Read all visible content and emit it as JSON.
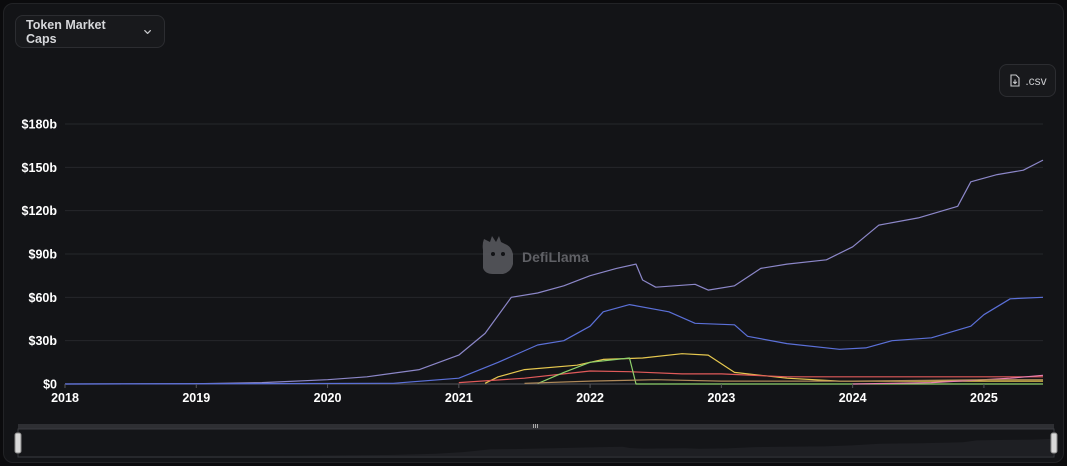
{
  "header": {
    "dropdown_label": "Token Market Caps",
    "dropdown_icon": "chevron-down-icon"
  },
  "toolbar": {
    "csv_label": ".csv",
    "csv_icon": "file-download-icon"
  },
  "watermark": {
    "text": "DefiLlama",
    "icon": "llama-logo-icon"
  },
  "colors": {
    "series_1": "#8c87c9",
    "series_2": "#5b70d8",
    "series_3": "#e6c84f",
    "series_4": "#e05a5a",
    "series_5": "#8fd16b",
    "series_6": "#e87fb0",
    "series_7": "#b08a5a"
  },
  "chart_data": {
    "type": "line",
    "title": "",
    "xlabel": "",
    "ylabel": "",
    "xlim": [
      2018.0,
      2025.45
    ],
    "ylim": [
      0,
      180
    ],
    "y_ticks": [
      0,
      30,
      60,
      90,
      120,
      150,
      180
    ],
    "y_tick_labels": [
      "$0",
      "$30b",
      "$60b",
      "$90b",
      "$120b",
      "$150b",
      "$180b"
    ],
    "x_ticks": [
      2018,
      2019,
      2020,
      2021,
      2022,
      2023,
      2024,
      2025
    ],
    "x_tick_labels": [
      "2018",
      "2019",
      "2020",
      "2021",
      "2022",
      "2023",
      "2024",
      "2025"
    ],
    "grid": "horizontal",
    "legend": "none",
    "series": [
      {
        "values": [
          [
            2018.0,
            0
          ],
          [
            2019.0,
            0.2
          ],
          [
            2019.5,
            1
          ],
          [
            2020.0,
            3
          ],
          [
            2020.3,
            5
          ],
          [
            2020.7,
            10
          ],
          [
            2021.0,
            20
          ],
          [
            2021.2,
            35
          ],
          [
            2021.4,
            60
          ],
          [
            2021.6,
            63
          ],
          [
            2021.8,
            68
          ],
          [
            2022.0,
            75
          ],
          [
            2022.2,
            80
          ],
          [
            2022.35,
            83
          ],
          [
            2022.4,
            72
          ],
          [
            2022.5,
            67
          ],
          [
            2022.8,
            69
          ],
          [
            2022.9,
            65
          ],
          [
            2023.1,
            68
          ],
          [
            2023.3,
            80
          ],
          [
            2023.5,
            83
          ],
          [
            2023.8,
            86
          ],
          [
            2024.0,
            95
          ],
          [
            2024.2,
            110
          ],
          [
            2024.5,
            115
          ],
          [
            2024.8,
            123
          ],
          [
            2024.9,
            140
          ],
          [
            2025.1,
            145
          ],
          [
            2025.3,
            148
          ],
          [
            2025.45,
            155
          ]
        ]
      },
      {
        "values": [
          [
            2018.0,
            0
          ],
          [
            2020.5,
            0.5
          ],
          [
            2021.0,
            4
          ],
          [
            2021.3,
            15
          ],
          [
            2021.6,
            27
          ],
          [
            2021.8,
            30
          ],
          [
            2022.0,
            40
          ],
          [
            2022.1,
            50
          ],
          [
            2022.3,
            55
          ],
          [
            2022.6,
            50
          ],
          [
            2022.8,
            42
          ],
          [
            2023.1,
            41
          ],
          [
            2023.2,
            33
          ],
          [
            2023.5,
            28
          ],
          [
            2023.9,
            24
          ],
          [
            2024.1,
            25
          ],
          [
            2024.3,
            30
          ],
          [
            2024.6,
            32
          ],
          [
            2024.9,
            40
          ],
          [
            2025.0,
            48
          ],
          [
            2025.2,
            59
          ],
          [
            2025.45,
            60
          ]
        ]
      },
      {
        "values": [
          [
            2021.2,
            0.5
          ],
          [
            2021.3,
            5
          ],
          [
            2021.5,
            10
          ],
          [
            2021.9,
            13
          ],
          [
            2022.1,
            17
          ],
          [
            2022.4,
            18
          ],
          [
            2022.7,
            21
          ],
          [
            2022.9,
            20
          ],
          [
            2023.1,
            8
          ],
          [
            2023.5,
            4
          ],
          [
            2023.9,
            2
          ],
          [
            2024.5,
            2
          ],
          [
            2025.45,
            2
          ]
        ]
      },
      {
        "values": [
          [
            2021.0,
            1
          ],
          [
            2021.5,
            4
          ],
          [
            2021.8,
            7
          ],
          [
            2022.0,
            9
          ],
          [
            2022.3,
            8.5
          ],
          [
            2022.7,
            7
          ],
          [
            2023.0,
            7
          ],
          [
            2023.5,
            5
          ],
          [
            2024.0,
            5
          ],
          [
            2024.5,
            5
          ],
          [
            2025.45,
            5
          ]
        ]
      },
      {
        "values": [
          [
            2021.6,
            0.3
          ],
          [
            2021.8,
            8
          ],
          [
            2022.0,
            15
          ],
          [
            2022.3,
            18
          ],
          [
            2022.35,
            0
          ],
          [
            2022.6,
            0
          ],
          [
            2025.45,
            0
          ]
        ]
      },
      {
        "values": [
          [
            2024.0,
            0
          ],
          [
            2024.6,
            1
          ],
          [
            2025.0,
            3
          ],
          [
            2025.2,
            4
          ],
          [
            2025.45,
            6
          ]
        ]
      },
      {
        "values": [
          [
            2021.5,
            0.5
          ],
          [
            2022.0,
            2
          ],
          [
            2022.5,
            3
          ],
          [
            2023.0,
            2
          ],
          [
            2023.5,
            2
          ],
          [
            2024.0,
            2
          ],
          [
            2025.0,
            3
          ],
          [
            2025.45,
            3
          ]
        ]
      }
    ]
  }
}
